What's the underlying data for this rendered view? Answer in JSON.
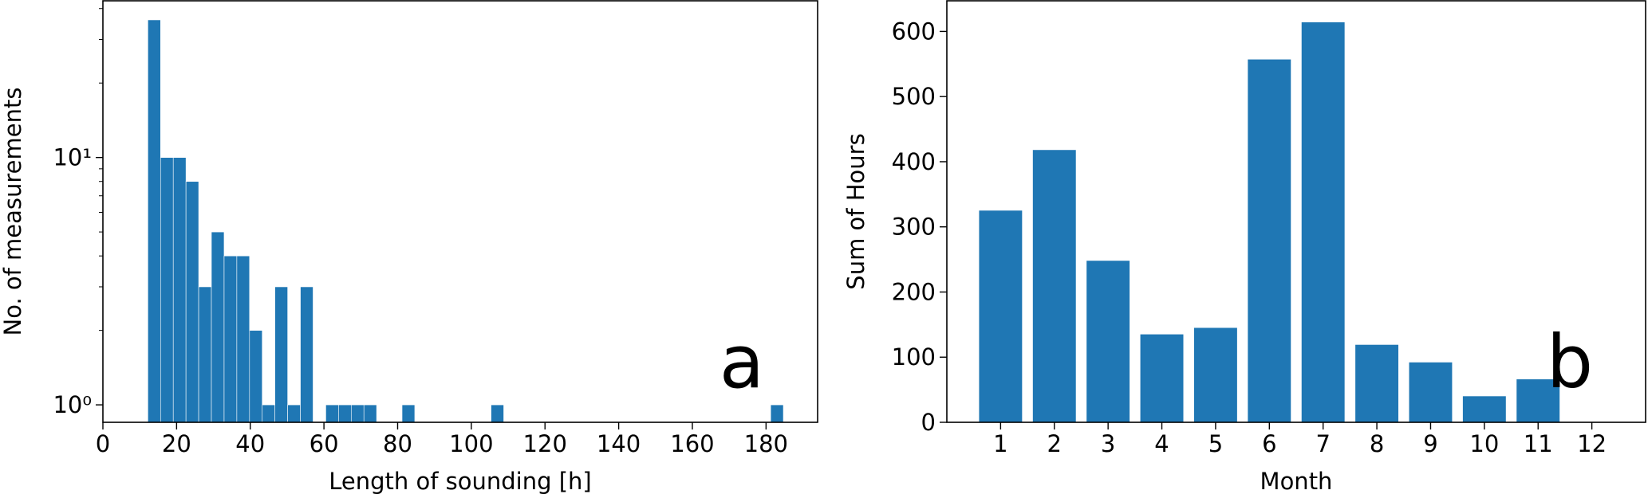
{
  "chart_data": [
    {
      "type": "histogram",
      "xlabel": "Length of sounding [h]",
      "ylabel": "No. of measurements",
      "annotation": "a",
      "color": "#1f77b4",
      "log_y": true,
      "bins": [
        12.2,
        15.65,
        19.1,
        22.55,
        26.0,
        29.45,
        32.9,
        36.35,
        39.8,
        43.25,
        46.7,
        50.15,
        53.6,
        57.05,
        60.5,
        63.95,
        67.4,
        70.85,
        74.3,
        77.75,
        81.2,
        84.65,
        88.1,
        91.55,
        95.0,
        98.45,
        101.9,
        105.35,
        108.8,
        112.25,
        115.7,
        119.15,
        122.6,
        126.05,
        129.5,
        132.95,
        136.4,
        139.85,
        143.3,
        146.75,
        150.2,
        153.65,
        157.1,
        160.55,
        164.0,
        167.45,
        170.9,
        174.35,
        177.8,
        181.25,
        184.7
      ],
      "values": [
        36,
        10,
        10,
        8,
        3,
        5,
        4,
        4,
        2,
        1,
        3,
        1,
        3,
        0,
        1,
        1,
        1,
        1,
        0,
        0,
        1,
        0,
        0,
        0,
        0,
        0,
        0,
        1,
        0,
        0,
        0,
        0,
        0,
        0,
        0,
        0,
        0,
        0,
        0,
        0,
        0,
        0,
        0,
        0,
        0,
        0,
        0,
        0,
        0,
        1
      ],
      "xlim": [
        0,
        194
      ],
      "xticks": [
        0,
        20,
        40,
        60,
        80,
        100,
        120,
        140,
        160,
        180
      ],
      "ylim": [
        0.85,
        43
      ],
      "yticks": [
        {
          "value": 1,
          "label": "10⁰"
        },
        {
          "value": 10,
          "label": "10¹"
        }
      ],
      "yminor_ticks": [
        2,
        3,
        4,
        5,
        6,
        7,
        8,
        9,
        20,
        30,
        40
      ]
    },
    {
      "type": "bar",
      "xlabel": "Month",
      "ylabel": "Sum of Hours",
      "annotation": "b",
      "color": "#1f77b4",
      "x": [
        1,
        2,
        3,
        4,
        5,
        6,
        7,
        8,
        9,
        10,
        11,
        12
      ],
      "values": [
        325,
        418,
        248,
        135,
        145,
        557,
        614,
        119,
        92,
        40,
        66,
        0
      ],
      "xlim": [
        0,
        13
      ],
      "xticks": [
        1,
        2,
        3,
        4,
        5,
        6,
        7,
        8,
        9,
        10,
        11,
        12
      ],
      "ylim": [
        0,
        647
      ],
      "yticks": [
        0,
        100,
        200,
        300,
        400,
        500,
        600
      ]
    }
  ]
}
